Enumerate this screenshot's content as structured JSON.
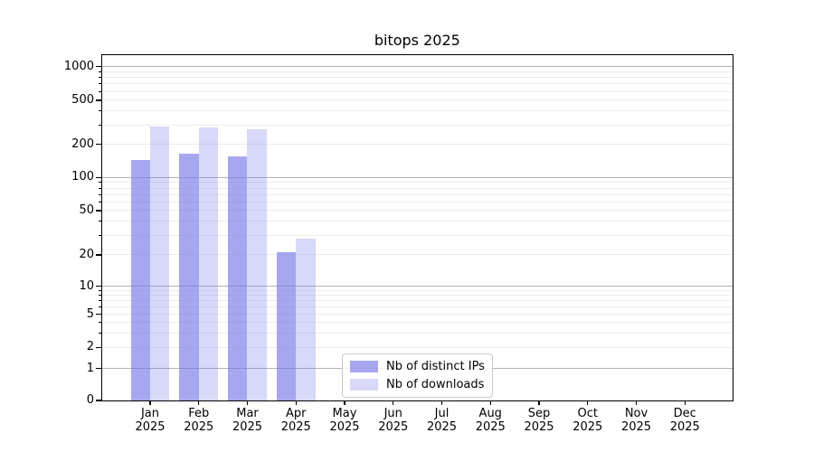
{
  "chart_data": {
    "type": "bar",
    "title": "bitops 2025",
    "categories": [
      "Jan 2025",
      "Feb 2025",
      "Mar 2025",
      "Apr 2025",
      "May 2025",
      "Jun 2025",
      "Jul 2025",
      "Aug 2025",
      "Sep 2025",
      "Oct 2025",
      "Nov 2025",
      "Dec 2025"
    ],
    "series": [
      {
        "name": "Nb of distinct IPs",
        "color": "rgba(120,120,230,0.65)",
        "values": [
          143,
          163,
          154,
          21,
          0,
          0,
          0,
          0,
          0,
          0,
          0,
          0
        ]
      },
      {
        "name": "Nb of downloads",
        "color": "rgba(120,120,230,0.29)",
        "values": [
          290,
          283,
          273,
          28,
          0,
          0,
          0,
          0,
          0,
          0,
          0,
          0
        ]
      }
    ],
    "yscale": "symlog",
    "yticks": [
      0,
      1,
      2,
      5,
      10,
      20,
      50,
      100,
      200,
      500,
      1000
    ],
    "ylim": [
      0,
      1300
    ],
    "xlabel": "",
    "ylabel": "",
    "grid": "both",
    "legend_position": "inside-lower-center",
    "colors": {
      "spine": "#000000",
      "grid_major": "#b2b2b2",
      "grid_minor": "#ececec",
      "text": "#000000",
      "background": "#ffffff"
    }
  }
}
